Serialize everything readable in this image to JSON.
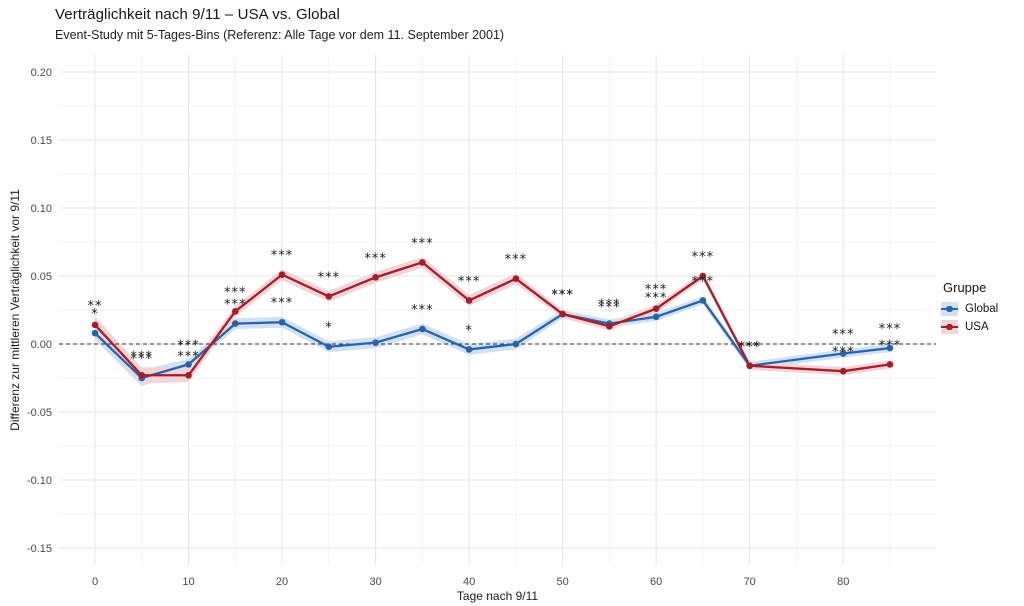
{
  "chart_data": {
    "type": "line",
    "title": "Verträglichkeit nach 9/11 – USA vs. Global",
    "subtitle": "Event-Study mit 5-Tages-Bins (Referenz: Alle Tage vor dem 11. September 2001)",
    "xlabel": "Tage nach 9/11",
    "ylabel": "Differenz zur mittleren Verträglichkeit vor 9/11",
    "legend_title": "Gruppe",
    "legend_position": "right",
    "grid": true,
    "zero_reference_line": 0,
    "x": [
      0,
      5,
      10,
      15,
      20,
      25,
      30,
      35,
      40,
      45,
      50,
      55,
      60,
      65,
      70,
      80,
      85
    ],
    "series": [
      {
        "name": "Global",
        "color": "#2a63a5",
        "ribbon": "#cfe1f2",
        "values": [
          0.008,
          -0.025,
          -0.015,
          0.015,
          0.016,
          -0.002,
          0.001,
          0.011,
          -0.004,
          0.0,
          0.022,
          0.015,
          0.02,
          0.032,
          -0.016,
          -0.007,
          -0.003
        ],
        "ci": [
          0.005,
          0.006,
          0.004,
          0.004,
          0.004,
          0.004,
          0.004,
          0.004,
          0.004,
          0.004,
          0.003,
          0.003,
          0.003,
          0.003,
          0.003,
          0.003,
          0.003
        ],
        "significance": [
          "*",
          "***",
          "***",
          "***",
          "***",
          "*",
          "",
          "***",
          "*",
          "",
          "***",
          "***",
          "***",
          "***",
          "***",
          "***",
          "***"
        ]
      },
      {
        "name": "USA",
        "color": "#a31d2b",
        "ribbon": "#f3d4d8",
        "values": [
          0.014,
          -0.023,
          -0.023,
          0.024,
          0.051,
          0.035,
          0.049,
          0.06,
          0.032,
          0.048,
          0.022,
          0.013,
          0.026,
          0.05,
          -0.016,
          -0.02,
          -0.015
        ],
        "ci": [
          0.006,
          0.006,
          0.005,
          0.004,
          0.004,
          0.004,
          0.004,
          0.004,
          0.004,
          0.004,
          0.003,
          0.003,
          0.003,
          0.003,
          0.003,
          0.003,
          0.003
        ],
        "significance": [
          "**",
          "***",
          "***",
          "***",
          "***",
          "***",
          "***",
          "***",
          "***",
          "***",
          "***",
          "***",
          "***",
          "***",
          "***",
          "***",
          "***"
        ]
      }
    ],
    "xticks": [
      0,
      10,
      20,
      30,
      40,
      50,
      60,
      70,
      80
    ],
    "yticks": [
      {
        "label": "0.20",
        "value": 0.2
      },
      {
        "label": "0.15",
        "value": 0.15
      },
      {
        "label": "0.10",
        "value": 0.1
      },
      {
        "label": "0.05",
        "value": 0.05
      },
      {
        "label": "0.00",
        "value": 0.0
      },
      {
        "label": "-0.05",
        "value": -0.05
      },
      {
        "label": "-0.10",
        "value": -0.1
      },
      {
        "label": "-0.15",
        "value": -0.15
      }
    ],
    "xlim": [
      -3.85,
      89.92
    ],
    "ylim": [
      -0.1625,
      0.2125
    ]
  }
}
